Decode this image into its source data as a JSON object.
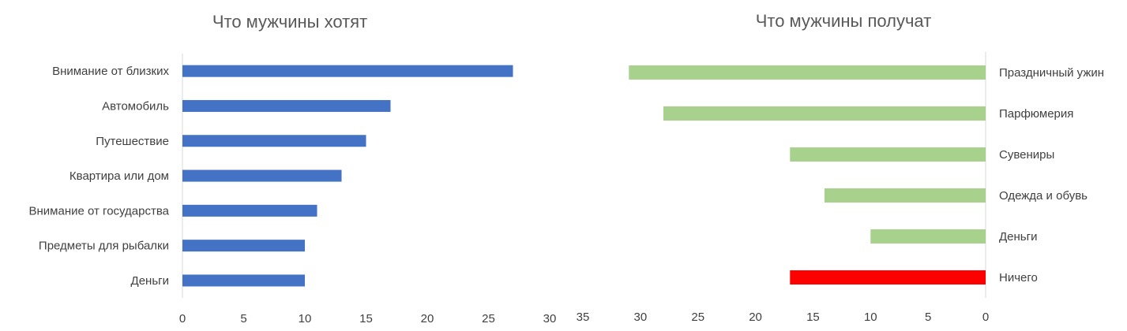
{
  "chart_data": [
    {
      "type": "bar",
      "orientation": "horizontal",
      "title": "Что мужчины хотят",
      "categories": [
        "Внимание от близких",
        "Автомобиль",
        "Путешествие",
        "Квартира или дом",
        "Внимание от государства",
        "Предметы для рыбалки",
        "Деньги"
      ],
      "values": [
        27,
        17,
        15,
        13,
        11,
        10,
        10
      ],
      "colors": [
        "#4472c4",
        "#4472c4",
        "#4472c4",
        "#4472c4",
        "#4472c4",
        "#4472c4",
        "#4472c4"
      ],
      "xlim": [
        0,
        30
      ],
      "xticks": [
        "0",
        "5",
        "10",
        "15",
        "20",
        "25",
        "30"
      ],
      "grid": false,
      "legend": "none"
    },
    {
      "type": "bar",
      "orientation": "horizontal",
      "direction": "reversed",
      "title": "Что мужчины получат",
      "categories": [
        "Праздничный ужин",
        "Парфюмерия",
        "Сувениры",
        "Одежда и обувь",
        "Деньги",
        "Ничего"
      ],
      "values": [
        31,
        28,
        17,
        14,
        10,
        17
      ],
      "colors": [
        "#a9d18e",
        "#a9d18e",
        "#a9d18e",
        "#a9d18e",
        "#a9d18e",
        "#ff0000"
      ],
      "xlim": [
        0,
        35
      ],
      "xticks": [
        "35",
        "30",
        "25",
        "20",
        "15",
        "10",
        "5",
        "0"
      ],
      "grid": false,
      "legend": "none"
    }
  ]
}
